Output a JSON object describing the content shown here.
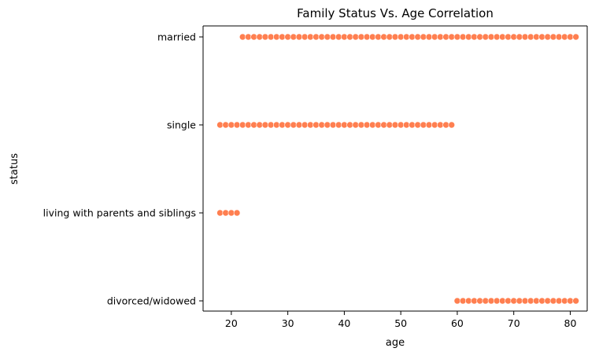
{
  "chart_data": {
    "type": "scatter",
    "title": "Family Status Vs. Age Correlation",
    "xlabel": "age",
    "ylabel": "status",
    "xlim": [
      15,
      83
    ],
    "x_ticks": [
      20,
      30,
      40,
      50,
      60,
      70,
      80
    ],
    "categories": [
      "married",
      "single",
      "living with parents and siblings",
      "divorced/widowed"
    ],
    "marker_color": "#FF7F50",
    "grid": false,
    "series": [
      {
        "category": "married",
        "x": [
          22,
          23,
          24,
          25,
          26,
          27,
          28,
          29,
          30,
          31,
          32,
          33,
          34,
          35,
          36,
          37,
          38,
          39,
          40,
          41,
          42,
          43,
          44,
          45,
          46,
          47,
          48,
          49,
          50,
          51,
          52,
          53,
          54,
          55,
          56,
          57,
          58,
          59,
          60,
          61,
          62,
          63,
          64,
          65,
          66,
          67,
          68,
          69,
          70,
          71,
          72,
          73,
          74,
          75,
          76,
          77,
          78,
          79,
          80,
          81
        ]
      },
      {
        "category": "single",
        "x": [
          18,
          19,
          20,
          21,
          22,
          23,
          24,
          25,
          26,
          27,
          28,
          29,
          30,
          31,
          32,
          33,
          34,
          35,
          36,
          37,
          38,
          39,
          40,
          41,
          42,
          43,
          44,
          45,
          46,
          47,
          48,
          49,
          50,
          51,
          52,
          53,
          54,
          55,
          56,
          57,
          58,
          59
        ]
      },
      {
        "category": "living with parents and siblings",
        "x": [
          18,
          19,
          20,
          21
        ]
      },
      {
        "category": "divorced/widowed",
        "x": [
          60,
          61,
          62,
          63,
          64,
          65,
          66,
          67,
          68,
          69,
          70,
          71,
          72,
          73,
          74,
          75,
          76,
          77,
          78,
          79,
          80,
          81
        ]
      }
    ]
  }
}
